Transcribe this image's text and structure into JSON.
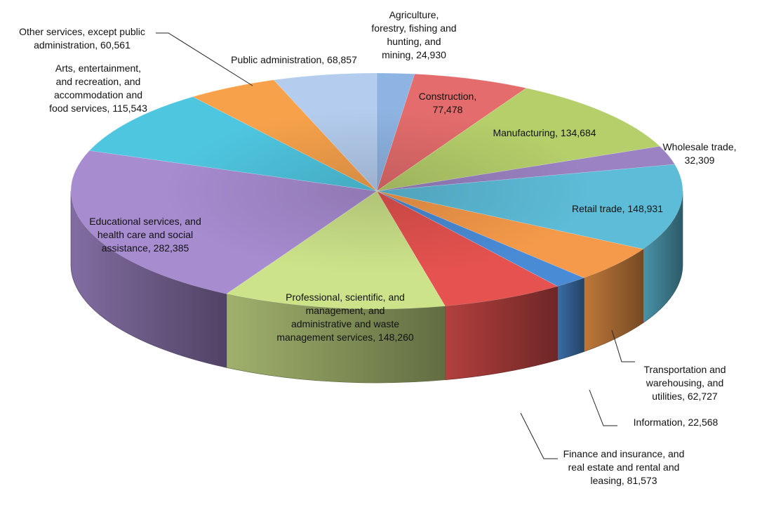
{
  "chart_data": {
    "type": "pie",
    "title": "",
    "slices": [
      {
        "label": "Agriculture,\nforestry, fishing and\nhunting, and\nmining, 24,930",
        "name": "Agriculture, forestry, fishing and hunting, and mining",
        "value": 24930,
        "color": "#8EB4E3"
      },
      {
        "label": "Construction,\n77,478",
        "name": "Construction",
        "value": 77478,
        "color": "#E46C6C"
      },
      {
        "label": "Manufacturing, 134,684",
        "name": "Manufacturing",
        "value": 134684,
        "color": "#B5CF6B"
      },
      {
        "label": "Wholesale trade,\n32,309",
        "name": "Wholesale trade",
        "value": 32309,
        "color": "#9B82C2"
      },
      {
        "label": "Retail trade, 148,931",
        "name": "Retail trade",
        "value": 148931,
        "color": "#5DBCD8"
      },
      {
        "label": "Transportation and\nwarehousing, and\nutilities, 62,727",
        "name": "Transportation and warehousing, and utilities",
        "value": 62727,
        "color": "#F59A4A"
      },
      {
        "label": "Information, 22,568",
        "name": "Information",
        "value": 22568,
        "color": "#4A8BD6"
      },
      {
        "label": "Finance and insurance, and\nreal estate and rental and\nleasing, 81,573",
        "name": "Finance and insurance, and real estate and rental and leasing",
        "value": 81573,
        "color": "#E5524F"
      },
      {
        "label": "Professional, scientific, and\nmanagement, and\nadministrative and waste\nmanagement services, 148,260",
        "name": "Professional, scientific, and management, and administrative and waste management services",
        "value": 148260,
        "color": "#CDE38A"
      },
      {
        "label": "Educational services, and\nhealth care and social\nassistance, 282,385",
        "name": "Educational services, and health care and social assistance",
        "value": 282385,
        "color": "#A78CD0"
      },
      {
        "label": "Arts, entertainment,\nand recreation, and\naccommodation and\nfood services, 115,543",
        "name": "Arts, entertainment, and recreation, and accommodation and food services",
        "value": 115543,
        "color": "#4FC6E0"
      },
      {
        "label": "Other services, except public\nadministration, 60,561",
        "name": "Other services, except public administration",
        "value": 60561,
        "color": "#F7A24B"
      },
      {
        "label": "Public administration, 68,857",
        "name": "Public administration",
        "value": 68857,
        "color": "#B4CDEE"
      }
    ],
    "legend": "none"
  }
}
